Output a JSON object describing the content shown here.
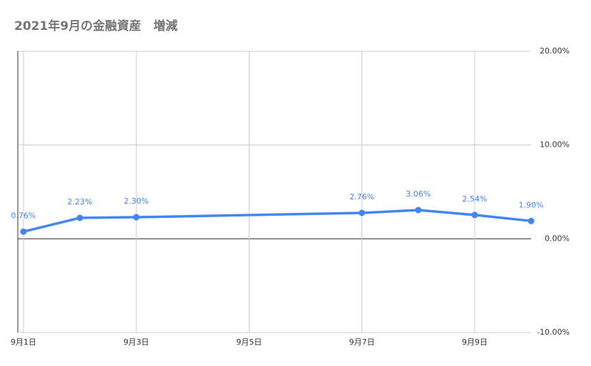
{
  "chart_data": {
    "type": "line",
    "title": "2021年9月の金融資産　増減",
    "x": [
      1,
      2,
      3,
      7,
      8,
      9,
      10
    ],
    "series": [
      {
        "color": "#4285f4",
        "values": [
          0.76,
          2.23,
          2.3,
          2.76,
          3.06,
          2.54,
          1.9
        ],
        "value_labels": [
          "0.76%",
          "2.23%",
          "2.30%",
          "2.76%",
          "3.06%",
          "2.54%",
          "1.90%"
        ]
      }
    ],
    "xlim": [
      0.9,
      10
    ],
    "xticks": [
      {
        "value": 1,
        "label": "9月1日"
      },
      {
        "value": 3,
        "label": "9月3日"
      },
      {
        "value": 5,
        "label": "9月5日"
      },
      {
        "value": 7,
        "label": "9月7日"
      },
      {
        "value": 9,
        "label": "9月9日"
      }
    ],
    "ylim": [
      -10,
      20
    ],
    "yticks": [
      {
        "value": -10,
        "label": "-10.00%"
      },
      {
        "value": 0,
        "label": "0.00%"
      },
      {
        "value": 10,
        "label": "10.00%"
      },
      {
        "value": 20,
        "label": "20.00%"
      }
    ],
    "grid": true
  }
}
